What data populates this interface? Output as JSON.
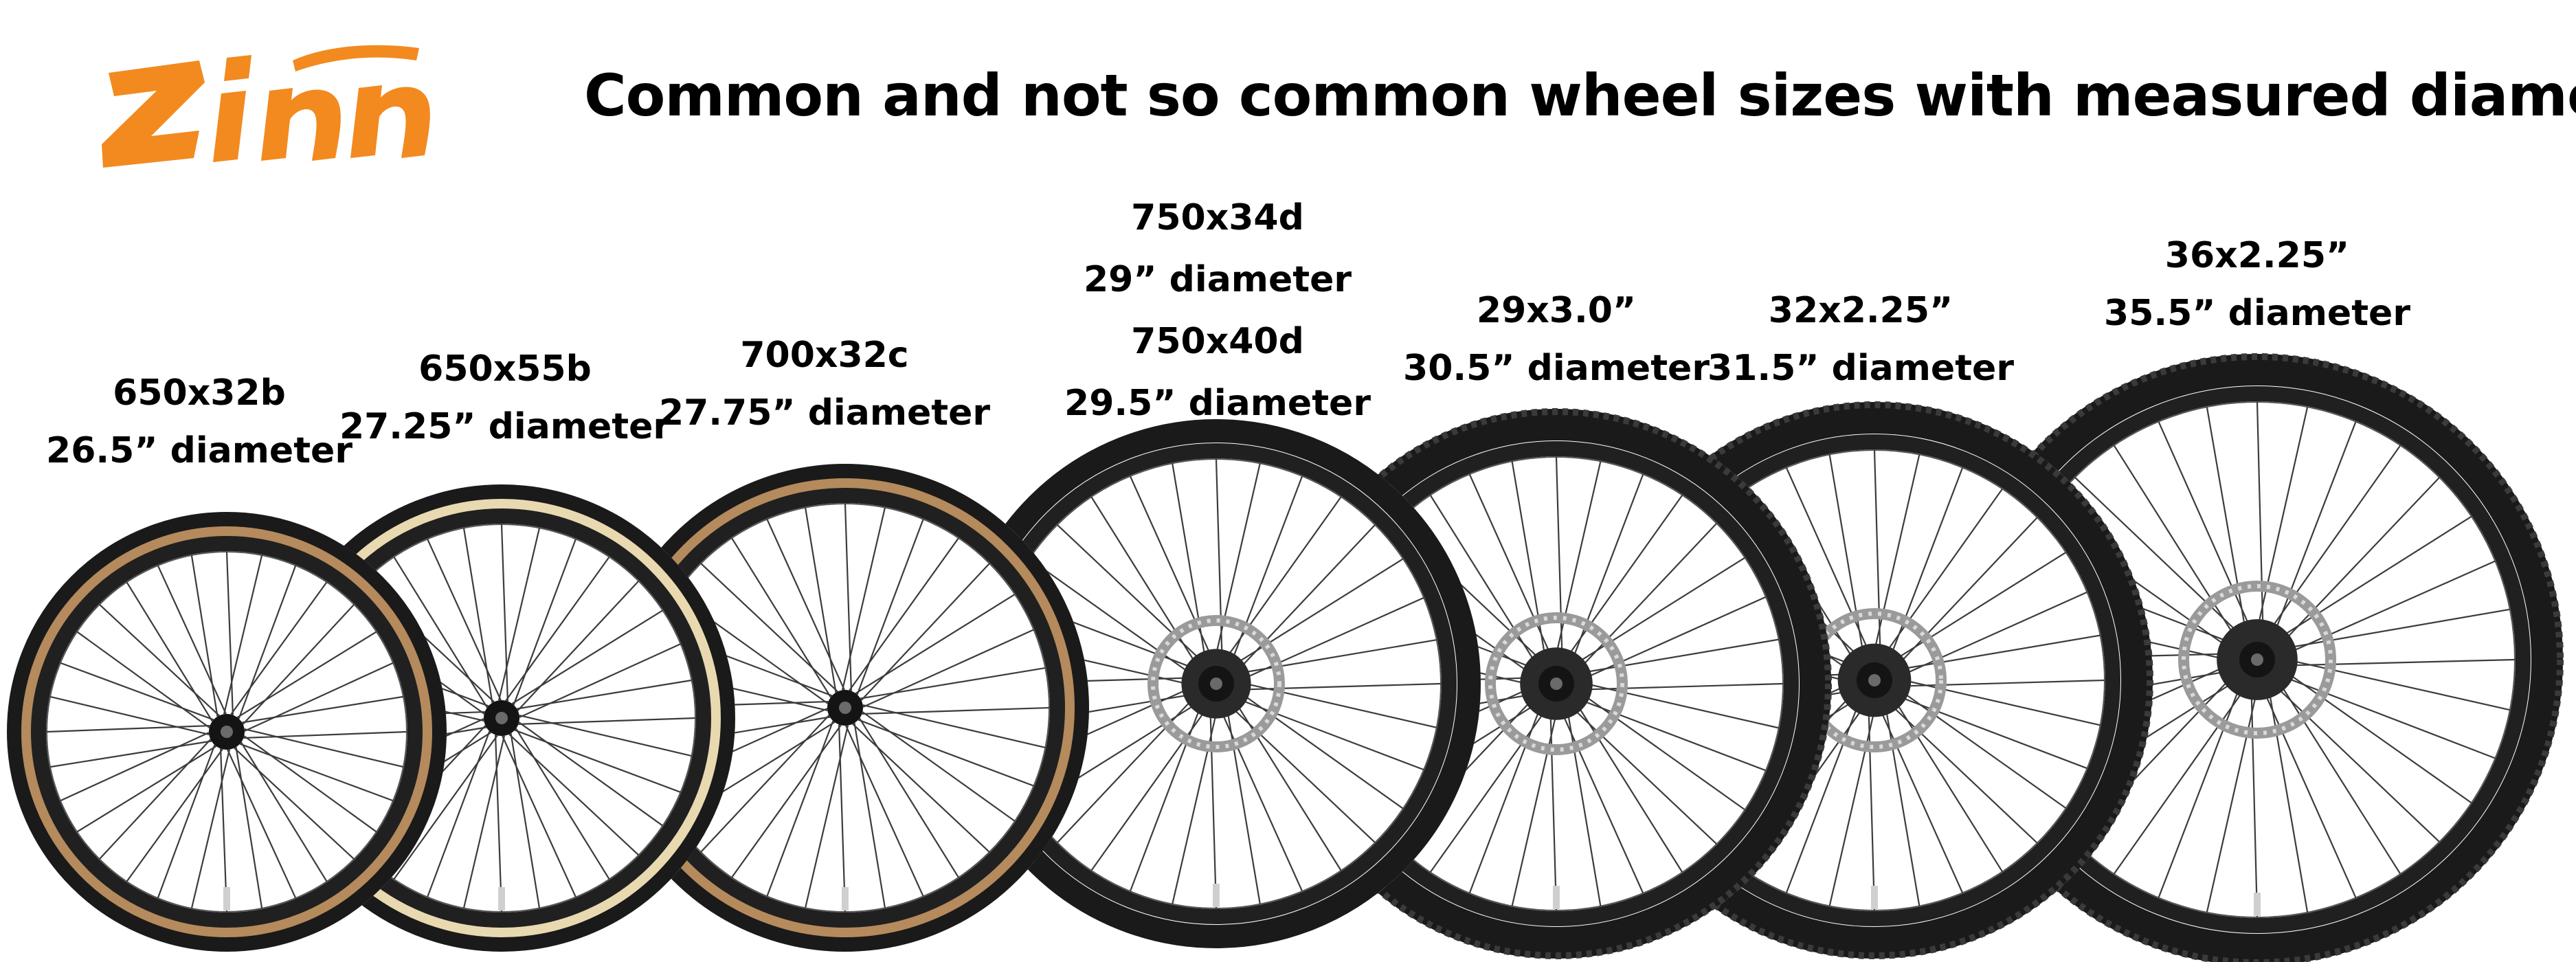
{
  "brand": {
    "logo_text": "ZINN",
    "logo_color": "#f28a1f"
  },
  "title": "Common and not so common wheel sizes with measured diameter",
  "wheels": [
    {
      "size": "650x32b",
      "diameter": "26.5” diameter",
      "tire_style": "tan-wall",
      "disc_brake": false
    },
    {
      "size": "650x55b",
      "diameter": "27.25” diameter",
      "tire_style": "cream-wall",
      "disc_brake": false
    },
    {
      "size": "700x32c",
      "diameter": "27.75” diameter",
      "tire_style": "tan-wall",
      "disc_brake": false
    },
    {
      "size": "750x34d",
      "diameter": "29” diameter",
      "size_2": "750x40d",
      "diameter_2": "29.5” diameter",
      "tire_style": "black",
      "disc_brake": true
    },
    {
      "size": "29x3.0”",
      "diameter": "30.5” diameter",
      "tire_style": "black-knobby",
      "disc_brake": true
    },
    {
      "size": "32x2.25”",
      "diameter": "31.5” diameter",
      "tire_style": "black-knobby",
      "disc_brake": true
    },
    {
      "size": "36x2.25”",
      "diameter": "35.5” diameter",
      "tire_style": "black-knobby",
      "disc_brake": true
    }
  ]
}
